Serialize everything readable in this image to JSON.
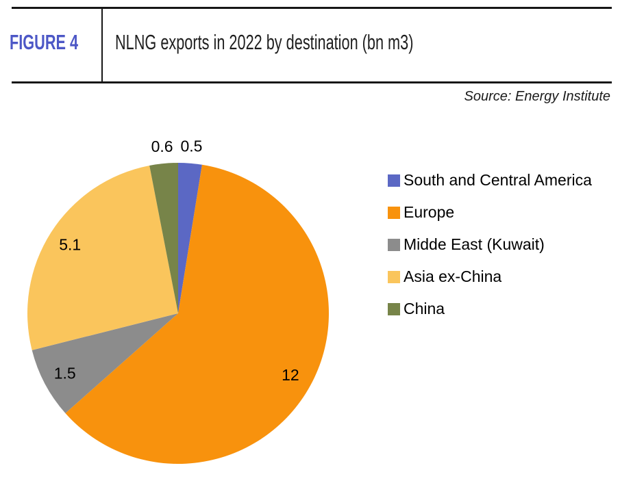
{
  "header": {
    "figure_label": "FIGURE 4",
    "title": "NLNG exports in 2022 by destination (bn m3)",
    "source": "Source: Energy Institute",
    "accent_color": "#4C57C6",
    "rule_color": "#161616"
  },
  "chart_data": {
    "type": "pie",
    "title": "NLNG exports in 2022 by destination (bn m3)",
    "unit": "bn m3",
    "labels": [
      "South and Central America",
      "Europe",
      "Midde East (Kuwait)",
      "Asia ex-China",
      "China"
    ],
    "values": [
      0.5,
      12,
      1.5,
      5.1,
      0.6
    ],
    "data_labels": [
      "0.5",
      "12",
      "1.5",
      "5.1",
      "0.6"
    ],
    "colors": [
      "#5B68C4",
      "#F8920D",
      "#8C8C8C",
      "#FAC55C",
      "#778449"
    ],
    "total": 19.7,
    "start_angle_deg": 0,
    "direction": "clockwise",
    "legend_position": "right",
    "outside_label_threshold": 0.05
  }
}
